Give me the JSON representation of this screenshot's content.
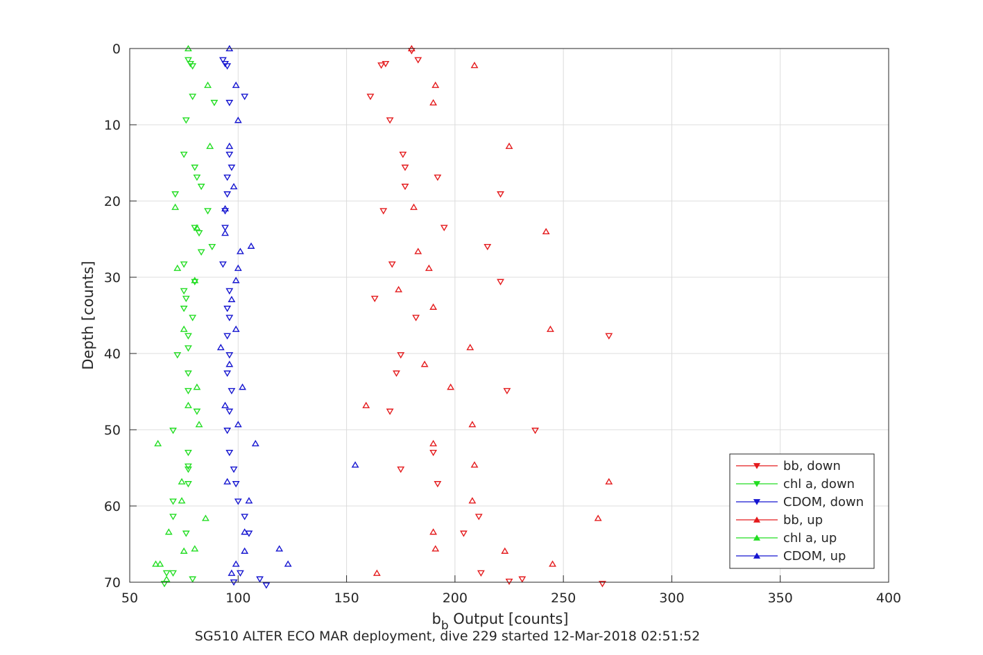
{
  "chart_data": {
    "type": "scatter",
    "xlabel_main": "b",
    "xlabel_sub": "b",
    "xlabel_rest": " Output [counts]",
    "ylabel": "Depth [counts]",
    "caption": "SG510 ALTER ECO MAR deployment, dive 229 started 12-Mar-2018 02:51:52",
    "xlim": [
      50,
      400
    ],
    "ylim": [
      0,
      70
    ],
    "y_reversed": true,
    "grid": true,
    "legend_position": "bottom-right",
    "xticks": [
      "50",
      "100",
      "150",
      "200",
      "250",
      "300",
      "350",
      "400"
    ],
    "yticks": [
      "0",
      "10",
      "20",
      "30",
      "40",
      "50",
      "60",
      "70"
    ],
    "series": [
      {
        "name": "bb, down",
        "color": "#e41a1c",
        "marker": "triangle-down",
        "points": [
          [
            180,
            0.3
          ],
          [
            183,
            1.5
          ],
          [
            168,
            2.0
          ],
          [
            166,
            2.2
          ],
          [
            161,
            6.3
          ],
          [
            170,
            9.4
          ],
          [
            176,
            13.9
          ],
          [
            177,
            15.6
          ],
          [
            192,
            16.9
          ],
          [
            177,
            18.1
          ],
          [
            221,
            19.1
          ],
          [
            167,
            21.3
          ],
          [
            195,
            23.5
          ],
          [
            215,
            26.0
          ],
          [
            171,
            28.3
          ],
          [
            221,
            30.6
          ],
          [
            163,
            32.8
          ],
          [
            182,
            35.3
          ],
          [
            271,
            37.7
          ],
          [
            175,
            40.2
          ],
          [
            173,
            42.6
          ],
          [
            224,
            44.9
          ],
          [
            170,
            47.6
          ],
          [
            237,
            50.1
          ],
          [
            190,
            53.0
          ],
          [
            175,
            55.2
          ],
          [
            192,
            57.1
          ],
          [
            211,
            61.4
          ],
          [
            204,
            63.6
          ],
          [
            212,
            68.8
          ],
          [
            231,
            69.6
          ],
          [
            225,
            69.9
          ],
          [
            268,
            70.2
          ]
        ]
      },
      {
        "name": "chl a, down",
        "color": "#22dd22",
        "marker": "triangle-down",
        "points": [
          [
            77,
            1.5
          ],
          [
            78,
            2.0
          ],
          [
            79,
            2.3
          ],
          [
            79,
            6.3
          ],
          [
            89,
            7.1
          ],
          [
            76,
            9.4
          ],
          [
            75,
            13.9
          ],
          [
            80,
            15.6
          ],
          [
            81,
            16.9
          ],
          [
            83,
            18.1
          ],
          [
            71,
            19.1
          ],
          [
            86,
            21.3
          ],
          [
            80,
            23.5
          ],
          [
            82,
            24.2
          ],
          [
            88,
            26.0
          ],
          [
            83,
            26.7
          ],
          [
            75,
            28.3
          ],
          [
            80,
            30.6
          ],
          [
            75,
            31.8
          ],
          [
            76,
            32.8
          ],
          [
            75,
            34.1
          ],
          [
            79,
            35.3
          ],
          [
            77,
            37.7
          ],
          [
            77,
            39.3
          ],
          [
            72,
            40.2
          ],
          [
            77,
            42.6
          ],
          [
            77,
            44.9
          ],
          [
            81,
            47.6
          ],
          [
            70,
            50.1
          ],
          [
            77,
            53.0
          ],
          [
            77,
            54.8
          ],
          [
            77,
            55.2
          ],
          [
            77,
            57.1
          ],
          [
            70,
            59.4
          ],
          [
            70,
            61.4
          ],
          [
            76,
            63.6
          ],
          [
            67,
            68.8
          ],
          [
            70,
            68.8
          ],
          [
            79,
            69.6
          ],
          [
            66,
            70.2
          ]
        ]
      },
      {
        "name": "CDOM, down",
        "color": "#1515d0",
        "marker": "triangle-down",
        "points": [
          [
            93,
            1.5
          ],
          [
            94,
            2.0
          ],
          [
            95,
            2.3
          ],
          [
            103,
            6.3
          ],
          [
            96,
            7.1
          ],
          [
            96,
            13.9
          ],
          [
            97,
            15.6
          ],
          [
            95,
            16.9
          ],
          [
            95,
            19.1
          ],
          [
            94,
            21.3
          ],
          [
            94,
            23.5
          ],
          [
            93,
            28.3
          ],
          [
            96,
            31.8
          ],
          [
            95,
            34.1
          ],
          [
            96,
            35.3
          ],
          [
            95,
            37.7
          ],
          [
            96,
            40.2
          ],
          [
            95,
            42.6
          ],
          [
            97,
            44.9
          ],
          [
            96,
            47.6
          ],
          [
            95,
            50.1
          ],
          [
            96,
            53.0
          ],
          [
            98,
            55.2
          ],
          [
            99,
            57.1
          ],
          [
            100,
            59.4
          ],
          [
            103,
            61.4
          ],
          [
            105,
            63.6
          ],
          [
            101,
            68.8
          ],
          [
            110,
            69.6
          ],
          [
            98,
            70.0
          ],
          [
            113,
            70.4
          ]
        ]
      },
      {
        "name": "bb, up",
        "color": "#e41a1c",
        "marker": "triangle-up",
        "points": [
          [
            180,
            0.0
          ],
          [
            209,
            2.2
          ],
          [
            191,
            4.8
          ],
          [
            190,
            7.1
          ],
          [
            225,
            12.8
          ],
          [
            181,
            20.8
          ],
          [
            242,
            24.0
          ],
          [
            183,
            26.6
          ],
          [
            188,
            28.8
          ],
          [
            174,
            31.6
          ],
          [
            190,
            33.9
          ],
          [
            244,
            36.8
          ],
          [
            207,
            39.2
          ],
          [
            186,
            41.4
          ],
          [
            198,
            44.4
          ],
          [
            159,
            46.8
          ],
          [
            208,
            49.3
          ],
          [
            190,
            51.8
          ],
          [
            209,
            54.6
          ],
          [
            271,
            56.8
          ],
          [
            208,
            59.3
          ],
          [
            266,
            61.6
          ],
          [
            190,
            63.4
          ],
          [
            191,
            65.6
          ],
          [
            223,
            65.9
          ],
          [
            245,
            67.6
          ],
          [
            164,
            68.8
          ]
        ]
      },
      {
        "name": "chl a, up",
        "color": "#22dd22",
        "marker": "triangle-up",
        "points": [
          [
            77,
            0.0
          ],
          [
            86,
            4.8
          ],
          [
            87,
            12.8
          ],
          [
            81,
            23.5
          ],
          [
            71,
            20.8
          ],
          [
            72,
            28.8
          ],
          [
            80,
            30.4
          ],
          [
            75,
            36.8
          ],
          [
            81,
            44.4
          ],
          [
            77,
            46.8
          ],
          [
            82,
            49.3
          ],
          [
            63,
            51.8
          ],
          [
            74,
            56.8
          ],
          [
            74,
            59.3
          ],
          [
            85,
            61.6
          ],
          [
            68,
            63.4
          ],
          [
            80,
            65.6
          ],
          [
            75,
            65.9
          ],
          [
            62,
            67.6
          ],
          [
            64,
            67.6
          ],
          [
            67,
            69.6
          ]
        ]
      },
      {
        "name": "CDOM, up",
        "color": "#1515d0",
        "marker": "triangle-up",
        "points": [
          [
            96,
            0.0
          ],
          [
            99,
            4.8
          ],
          [
            100,
            9.4
          ],
          [
            96,
            12.8
          ],
          [
            98,
            18.1
          ],
          [
            94,
            21.0
          ],
          [
            94,
            24.2
          ],
          [
            106,
            25.9
          ],
          [
            101,
            26.6
          ],
          [
            100,
            28.8
          ],
          [
            99,
            30.4
          ],
          [
            97,
            32.9
          ],
          [
            99,
            36.8
          ],
          [
            92,
            39.2
          ],
          [
            96,
            41.4
          ],
          [
            102,
            44.4
          ],
          [
            94,
            46.8
          ],
          [
            100,
            49.3
          ],
          [
            108,
            51.8
          ],
          [
            154,
            54.6
          ],
          [
            95,
            56.8
          ],
          [
            105,
            59.3
          ],
          [
            103,
            63.4
          ],
          [
            119,
            65.6
          ],
          [
            103,
            65.9
          ],
          [
            123,
            67.6
          ],
          [
            99,
            67.6
          ],
          [
            97,
            68.8
          ]
        ]
      }
    ]
  }
}
